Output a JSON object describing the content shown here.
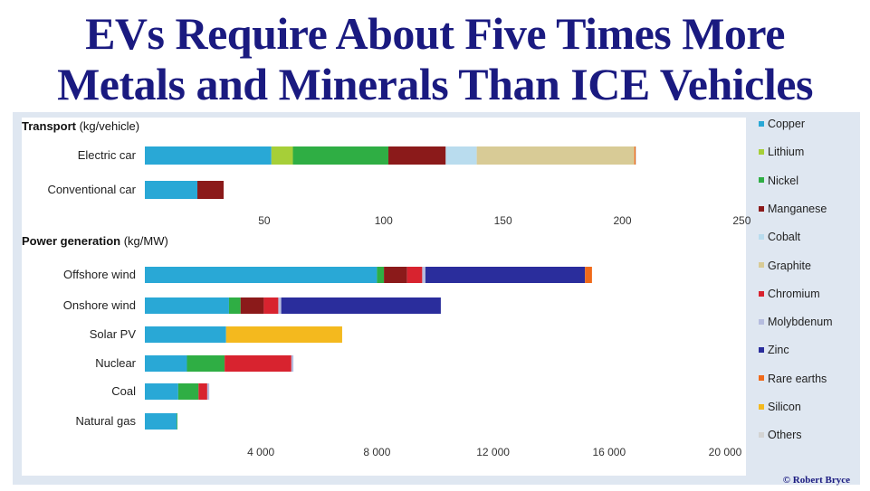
{
  "title": {
    "line1": "EVs Require About Five Times More",
    "line2": "Metals and Minerals Than ICE Vehicles"
  },
  "credit": "© Robert Bryce",
  "chart_data": [
    {
      "type": "bar",
      "orientation": "horizontal",
      "stacked": true,
      "section_title_bold": "Transport",
      "section_title_unit": "(kg/vehicle)",
      "categories": [
        "Electric car",
        "Conventional car"
      ],
      "xlim": [
        0,
        250
      ],
      "xticks": [
        50,
        100,
        150,
        200,
        250
      ],
      "xtick_labels": [
        "50",
        "100",
        "150",
        "200",
        "250"
      ],
      "series": [
        {
          "name": "Copper",
          "values": [
            53,
            22
          ]
        },
        {
          "name": "Lithium",
          "values": [
            9,
            0
          ]
        },
        {
          "name": "Nickel",
          "values": [
            40,
            0
          ]
        },
        {
          "name": "Manganese",
          "values": [
            24,
            11
          ]
        },
        {
          "name": "Cobalt",
          "values": [
            13,
            0
          ]
        },
        {
          "name": "Graphite",
          "values": [
            66,
            0
          ]
        },
        {
          "name": "Chromium",
          "values": [
            0,
            0
          ]
        },
        {
          "name": "Molybdenum",
          "values": [
            0,
            0
          ]
        },
        {
          "name": "Zinc",
          "values": [
            0,
            0
          ]
        },
        {
          "name": "Rare earths",
          "values": [
            0.5,
            0
          ]
        },
        {
          "name": "Silicon",
          "values": [
            0,
            0
          ]
        },
        {
          "name": "Others",
          "values": [
            0.3,
            0
          ]
        }
      ]
    },
    {
      "type": "bar",
      "orientation": "horizontal",
      "stacked": true,
      "section_title_bold": "Power generation",
      "section_title_unit": "(kg/MW)",
      "categories": [
        "Offshore wind",
        "Onshore wind",
        "Solar PV",
        "Nuclear",
        "Coal",
        "Natural gas"
      ],
      "xlim": [
        0,
        20000
      ],
      "xticks": [
        4000,
        8000,
        12000,
        16000,
        20000
      ],
      "xtick_labels": [
        "4 000",
        "8 000",
        "12 000",
        "16 000",
        "20 000"
      ],
      "series": [
        {
          "name": "Copper",
          "values": [
            8000,
            2900,
            2800,
            1450,
            1150,
            1100
          ]
        },
        {
          "name": "Lithium",
          "values": [
            0,
            0,
            0,
            0,
            0,
            0
          ]
        },
        {
          "name": "Nickel",
          "values": [
            240,
            400,
            0,
            1300,
            700,
            16
          ]
        },
        {
          "name": "Manganese",
          "values": [
            800,
            800,
            0,
            0,
            0,
            0
          ]
        },
        {
          "name": "Cobalt",
          "values": [
            0,
            0,
            0,
            0,
            0,
            0
          ]
        },
        {
          "name": "Graphite",
          "values": [
            0,
            0,
            0,
            0,
            0,
            0
          ]
        },
        {
          "name": "Chromium",
          "values": [
            520,
            500,
            0,
            2300,
            300,
            0
          ]
        },
        {
          "name": "Molybdenum",
          "values": [
            110,
            100,
            0,
            70,
            70,
            0
          ]
        },
        {
          "name": "Zinc",
          "values": [
            5500,
            5500,
            0,
            0,
            0,
            0
          ]
        },
        {
          "name": "Rare earths",
          "values": [
            240,
            0,
            0,
            0,
            0,
            0
          ]
        },
        {
          "name": "Silicon",
          "values": [
            0,
            0,
            4000,
            0,
            0,
            0
          ]
        },
        {
          "name": "Others",
          "values": [
            0,
            0,
            0,
            0,
            0,
            0
          ]
        }
      ]
    }
  ],
  "legend": [
    {
      "name": "Copper",
      "color": "#29a8d6"
    },
    {
      "name": "Lithium",
      "color": "#a6cf38"
    },
    {
      "name": "Nickel",
      "color": "#2fae44"
    },
    {
      "name": "Manganese",
      "color": "#8b1a1a"
    },
    {
      "name": "Cobalt",
      "color": "#b9dcee"
    },
    {
      "name": "Graphite",
      "color": "#d8cb96"
    },
    {
      "name": "Chromium",
      "color": "#d8232f"
    },
    {
      "name": "Molybdenum",
      "color": "#b6bddf"
    },
    {
      "name": "Zinc",
      "color": "#2a2d9c"
    },
    {
      "name": "Rare earths",
      "color": "#f06a1a"
    },
    {
      "name": "Silicon",
      "color": "#f4b91e"
    },
    {
      "name": "Others",
      "color": "#d3d3d3"
    }
  ]
}
